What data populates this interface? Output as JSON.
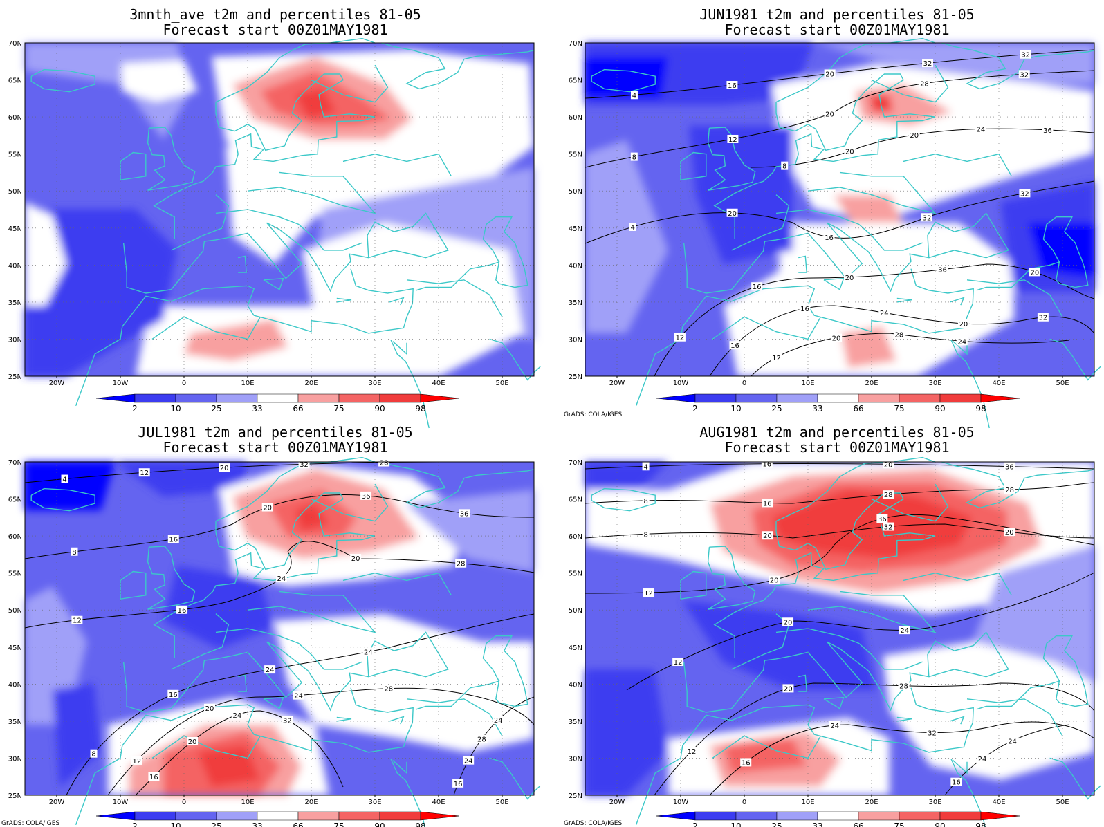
{
  "credit": "GrADS: COLA/IGES",
  "axes": {
    "lon_ticks": [
      "20W",
      "10W",
      "0",
      "10E",
      "20E",
      "30E",
      "40E",
      "50E"
    ],
    "lat_ticks": [
      "70N",
      "65N",
      "60N",
      "55N",
      "50N",
      "45N",
      "40N",
      "35N",
      "30N",
      "25N"
    ],
    "lon_range": [
      -25,
      55
    ],
    "lat_range": [
      25,
      70
    ],
    "grid": "dotted"
  },
  "colorbar": {
    "labels": [
      "2",
      "10",
      "25",
      "33",
      "66",
      "75",
      "90",
      "98"
    ],
    "colors": [
      "#0000ff",
      "#3c3cf0",
      "#6464f0",
      "#a0a0f8",
      "#ffffff",
      "#f8a0a0",
      "#f46464",
      "#f03c3c",
      "#ff0000"
    ]
  },
  "colors": {
    "coastline": "#3cc8c8",
    "contour": "#000000"
  },
  "panels": [
    {
      "title_line1": "3mnth_ave t2m and percentiles 81-05",
      "title_line2": "Forecast start 00Z01MAY1981",
      "show_credit": false,
      "contour_labels": []
    },
    {
      "title_line1": "JUN1981 t2m and percentiles 81-05",
      "title_line2": "Forecast start 00Z01MAY1981",
      "show_credit": true,
      "contour_labels": [
        "4",
        "8",
        "8",
        "4",
        "12",
        "16",
        "12",
        "16",
        "12",
        "20",
        "20",
        "16",
        "16",
        "20",
        "20",
        "20",
        "20",
        "16",
        "20",
        "24",
        "28",
        "32",
        "28",
        "24",
        "32",
        "36",
        "20",
        "24",
        "32",
        "32",
        "36",
        "32",
        "20",
        "32"
      ]
    },
    {
      "title_line1": "JUL1981 t2m and percentiles 81-05",
      "title_line2": "Forecast start 00Z01MAY1981",
      "show_credit": true,
      "contour_labels": [
        "4",
        "8",
        "12",
        "8",
        "12",
        "16",
        "16",
        "12",
        "16",
        "16",
        "16",
        "20",
        "20",
        "24",
        "20",
        "20",
        "24",
        "24",
        "24",
        "24",
        "28",
        "32",
        "36",
        "20",
        "24",
        "28",
        "32",
        "24",
        "28",
        "36",
        "28"
      ]
    },
    {
      "title_line1": "AUG1981 t2m and percentiles 81-05",
      "title_line2": "Forecast start 00Z01MAY1981",
      "show_credit": true,
      "contour_labels": [
        "4",
        "8",
        "8",
        "12",
        "12",
        "12",
        "16",
        "16",
        "16",
        "16",
        "20",
        "20",
        "20",
        "20",
        "24",
        "24",
        "20",
        "28",
        "32",
        "36",
        "24",
        "28",
        "32",
        "24",
        "36",
        "28",
        "20"
      ]
    }
  ]
}
